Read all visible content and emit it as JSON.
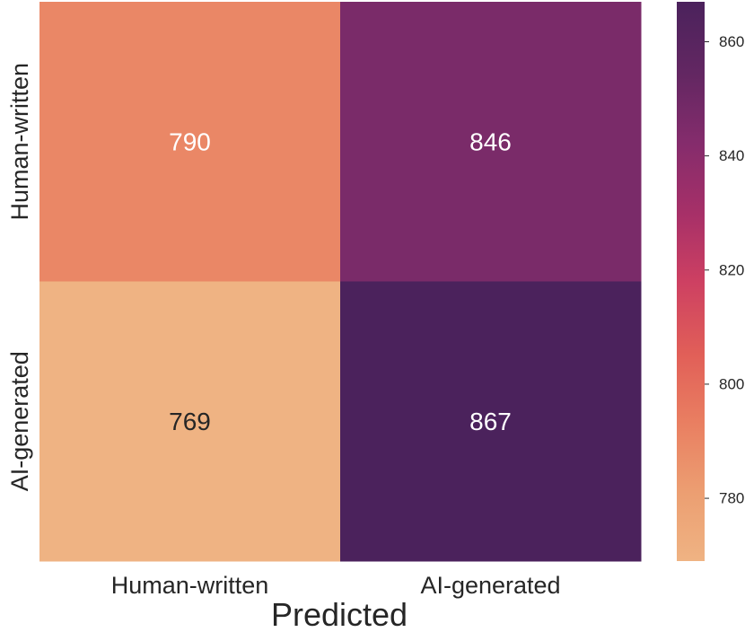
{
  "chart_data": {
    "type": "heatmap",
    "xlabel": "Predicted",
    "ylabel": "",
    "x_categories": [
      "Human-written",
      "AI-generated"
    ],
    "y_categories": [
      "Human-written",
      "AI-generated"
    ],
    "values": [
      [
        790,
        846
      ],
      [
        769,
        867
      ]
    ],
    "colorbar": {
      "range": [
        769,
        867
      ],
      "ticks": [
        780,
        800,
        820,
        840,
        860
      ],
      "colormap": "flare"
    },
    "colors": {
      "low": "#efb383",
      "mid": "#d2475a",
      "high": "#4f235d",
      "light_text": "#ffffff",
      "dark_text": "#262626"
    }
  }
}
